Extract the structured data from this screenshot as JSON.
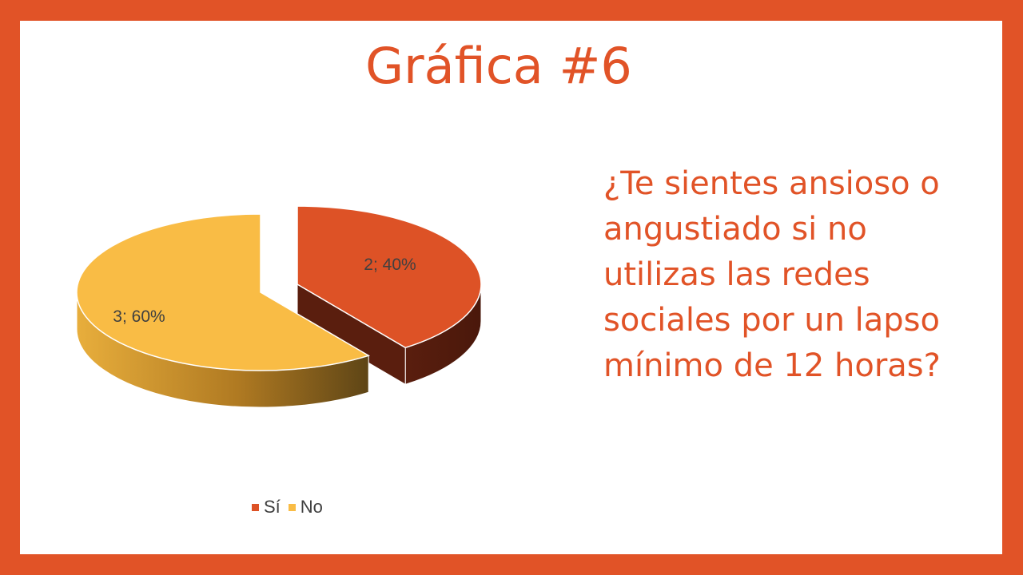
{
  "slide": {
    "title": "Gráfica #6",
    "question": "¿Te sientes ansioso o angustiado si no utilizas las redes sociales por un lapso mínimo de 12 horas?"
  },
  "colors": {
    "frame": "#E15327",
    "accent_text": "#E15327",
    "si": "#DD5226",
    "si_side": "#5A1E0E",
    "no": "#F9BC45",
    "no_side": "#C68E2A"
  },
  "chart_data": {
    "type": "pie",
    "style": "3d-exploded",
    "categories": [
      "Sí",
      "No"
    ],
    "values": [
      2,
      3
    ],
    "percentages": [
      40,
      60
    ],
    "data_labels": [
      "2; 40%",
      "3; 60%"
    ],
    "legend": {
      "placement": "bottom",
      "entries": [
        "Sí",
        "No"
      ]
    }
  }
}
